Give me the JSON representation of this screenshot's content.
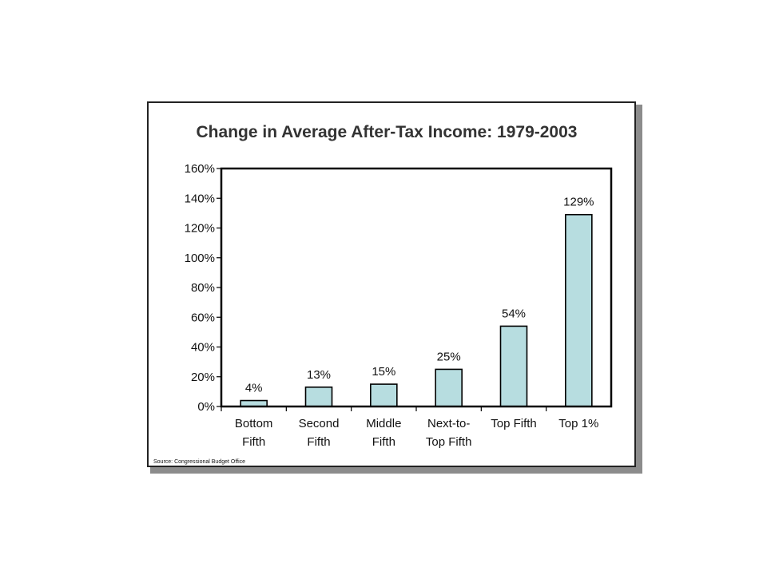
{
  "chart_data": {
    "type": "bar",
    "title": "Change in Average After-Tax Income:  1979-2003",
    "xlabel": "",
    "ylabel": "",
    "categories": [
      [
        "Bottom",
        "Fifth"
      ],
      [
        "Second",
        "Fifth"
      ],
      [
        "Middle",
        "Fifth"
      ],
      [
        "Next-to-",
        "Top Fifth"
      ],
      [
        "Top Fifth"
      ],
      [
        "Top 1%"
      ]
    ],
    "values": [
      4,
      13,
      15,
      25,
      54,
      129
    ],
    "data_labels": [
      "4%",
      "13%",
      "15%",
      "25%",
      "54%",
      "129%"
    ],
    "ylim": [
      0,
      160
    ],
    "yticks": [
      0,
      20,
      40,
      60,
      80,
      100,
      120,
      140,
      160
    ],
    "ytick_labels": [
      "0%",
      "20%",
      "40%",
      "60%",
      "80%",
      "100%",
      "120%",
      "140%",
      "160%"
    ],
    "grid": false,
    "legend": "none",
    "bar_color": "#b7dde0",
    "bar_stroke": "#000000",
    "source": "Source: Congressional Budget Office"
  }
}
